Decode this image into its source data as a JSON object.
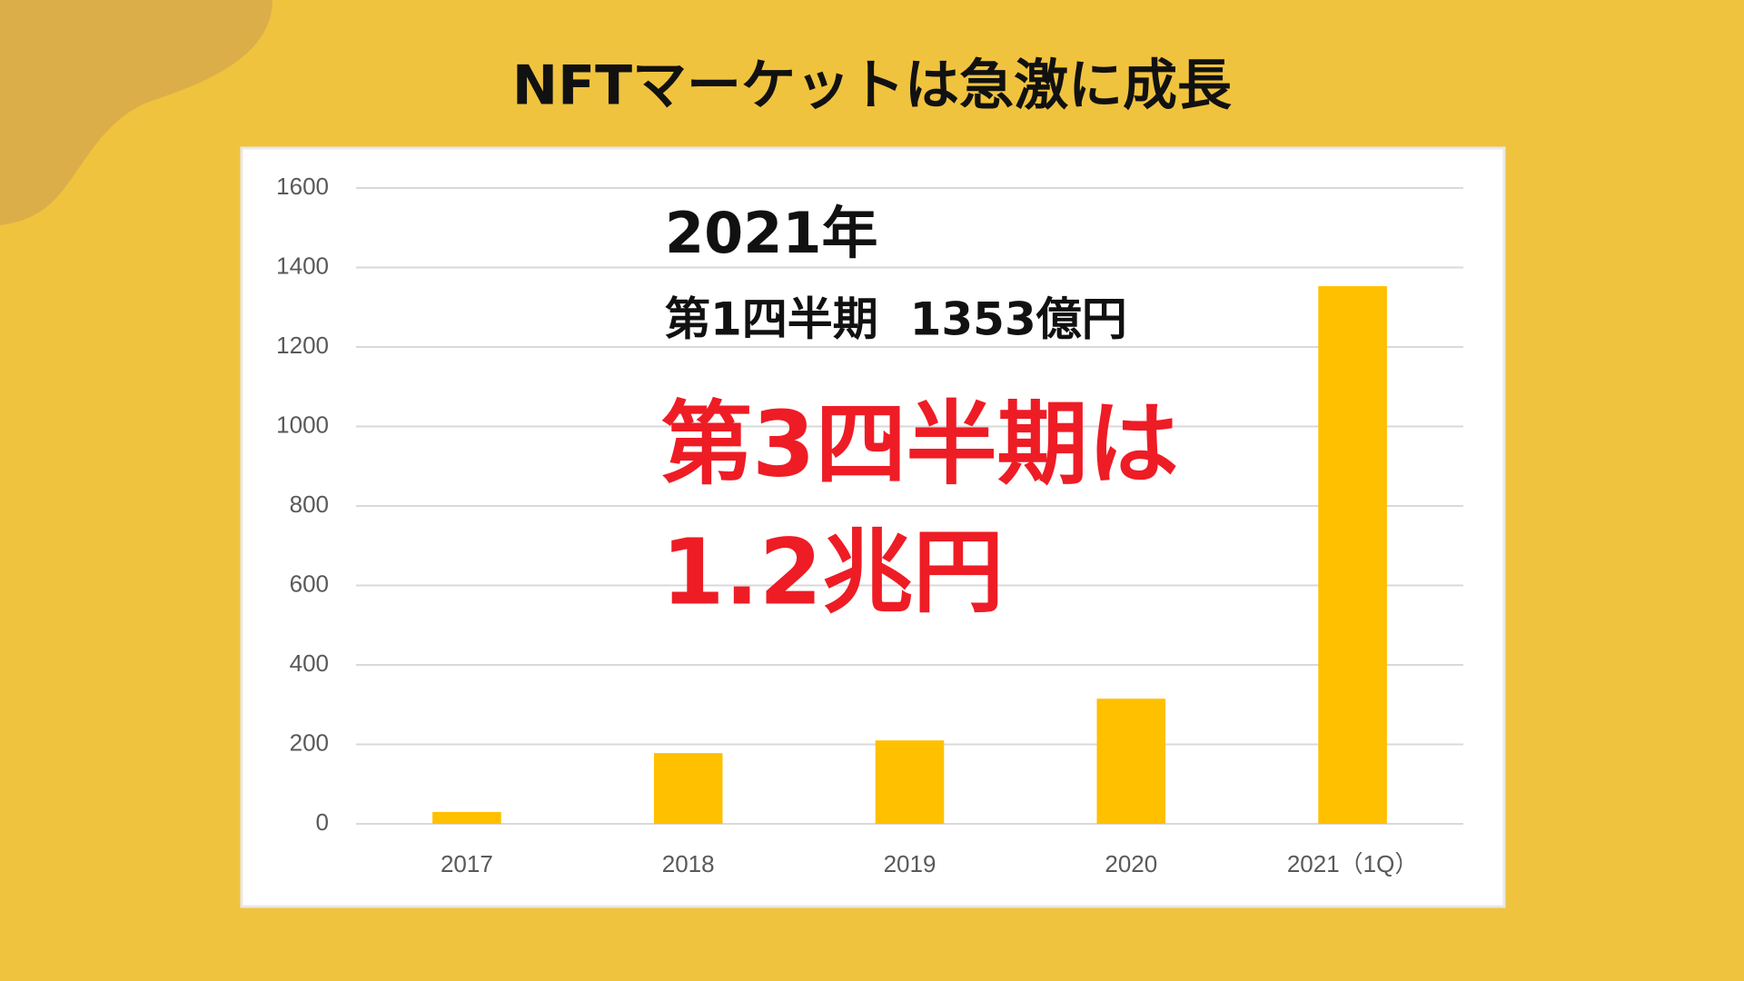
{
  "chart_data": {
    "type": "bar",
    "title": "NFTマーケットは急激に成長",
    "annotations": [
      "2021年",
      "第1四半期  1353億円",
      "第3四半期は",
      "1.2兆円"
    ],
    "categories": [
      "2017",
      "2018",
      "2019",
      "2020",
      "2021（1Q）"
    ],
    "values": [
      30,
      178,
      210,
      315,
      1353
    ],
    "color": "#ffc000",
    "ylim": [
      0,
      1600
    ],
    "yticks": [
      0,
      200,
      400,
      600,
      800,
      1000,
      1200,
      1400,
      1600
    ],
    "grid": true
  }
}
